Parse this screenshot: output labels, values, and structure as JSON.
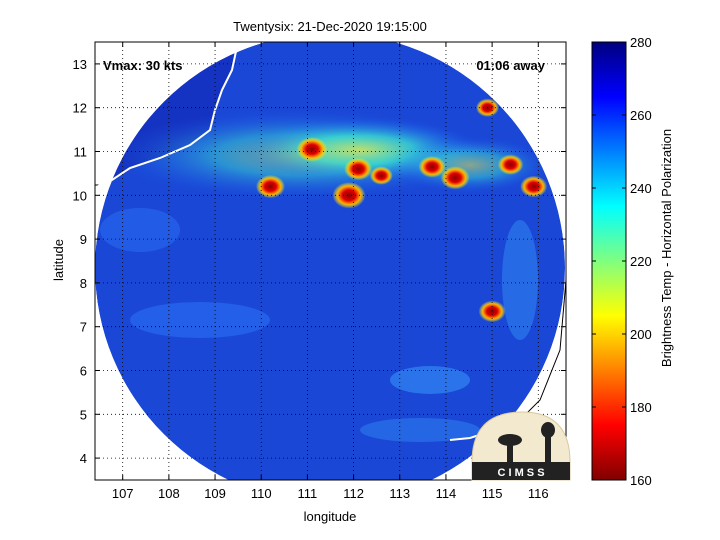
{
  "title": "Twentysix: 21-Dec-2020 19:15:00",
  "annotations": {
    "vmax": "Vmax: 30 kts",
    "distance": "01:06 away"
  },
  "x_axis": {
    "label": "longitude",
    "ticks": [
      "107",
      "108",
      "109",
      "110",
      "111",
      "112",
      "113",
      "114",
      "115",
      "116"
    ]
  },
  "y_axis": {
    "label": "latitude",
    "ticks": [
      "4",
      "5",
      "6",
      "7",
      "8",
      "9",
      "10",
      "11",
      "12",
      "13"
    ]
  },
  "colorbar": {
    "label": "Brightness Temp - Horizontal Polarization",
    "ticks": [
      "160",
      "180",
      "200",
      "220",
      "240",
      "260",
      "280"
    ],
    "range": [
      160,
      280
    ],
    "colormap": "jet"
  },
  "logo": {
    "text": "C I M S S"
  },
  "colors": {
    "ocean": "#1a47d6",
    "land": "#1533c2",
    "hot": "#8b0000",
    "coast": "#ffffff"
  },
  "map_data": {
    "lon_range": [
      106.4,
      116.6
    ],
    "lat_range": [
      3.5,
      13.5
    ],
    "swath_center": [
      111.5,
      8.5
    ],
    "swath_radius_deg": 5.1,
    "cold_cells": [
      {
        "lon": 111.1,
        "lat": 11.05,
        "temp": 175
      },
      {
        "lon": 110.2,
        "lat": 10.2,
        "temp": 178
      },
      {
        "lon": 111.9,
        "lat": 10.0,
        "temp": 170
      },
      {
        "lon": 112.1,
        "lat": 10.6,
        "temp": 180
      },
      {
        "lon": 112.6,
        "lat": 10.45,
        "temp": 190
      },
      {
        "lon": 113.7,
        "lat": 10.65,
        "temp": 182
      },
      {
        "lon": 114.2,
        "lat": 10.4,
        "temp": 178
      },
      {
        "lon": 115.4,
        "lat": 10.7,
        "temp": 185
      },
      {
        "lon": 115.9,
        "lat": 10.2,
        "temp": 182
      },
      {
        "lon": 114.9,
        "lat": 12.0,
        "temp": 190
      },
      {
        "lon": 115.0,
        "lat": 7.35,
        "temp": 182
      }
    ]
  }
}
